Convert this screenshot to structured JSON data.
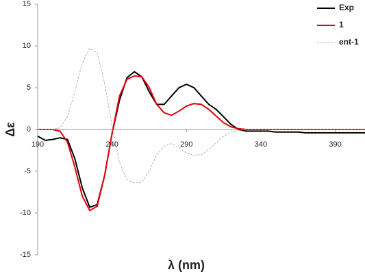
{
  "chart_data": {
    "type": "line",
    "x_label": "λ (nm)",
    "y_label": "Δε",
    "x": [
      190,
      195,
      200,
      205,
      210,
      215,
      220,
      225,
      230,
      235,
      240,
      245,
      250,
      255,
      260,
      265,
      270,
      275,
      280,
      285,
      290,
      295,
      300,
      305,
      310,
      315,
      320,
      325,
      330,
      335,
      340,
      345,
      350,
      355,
      360,
      365,
      370,
      375,
      380,
      385,
      390,
      395,
      400,
      405,
      410
    ],
    "series": [
      {
        "name": "Exp",
        "color": "#000000",
        "dash": "solid",
        "values": [
          -0.8,
          -1.3,
          -1.2,
          -1.0,
          -1.2,
          -3.5,
          -7.0,
          -9.3,
          -9.0,
          -5.5,
          -0.5,
          3.5,
          6.2,
          6.9,
          6.3,
          4.5,
          3.0,
          3.0,
          4.0,
          5.0,
          5.4,
          5.0,
          4.0,
          3.0,
          2.4,
          1.5,
          0.6,
          0.0,
          -0.2,
          -0.2,
          -0.2,
          -0.2,
          -0.3,
          -0.3,
          -0.3,
          -0.3,
          -0.4,
          -0.4,
          -0.4,
          -0.4,
          -0.4,
          -0.4,
          -0.4,
          -0.4,
          -0.4
        ]
      },
      {
        "name": "1",
        "color": "#e8000b",
        "dash": "solid",
        "values": [
          0,
          0,
          0,
          -0.2,
          -1.5,
          -4.5,
          -8.0,
          -9.7,
          -9.2,
          -5.5,
          -0.5,
          4.0,
          6.0,
          6.4,
          6.3,
          5.0,
          3.0,
          2.0,
          1.7,
          2.2,
          2.8,
          3.1,
          3.0,
          2.4,
          1.6,
          0.8,
          0.3,
          0.1,
          0,
          0,
          0,
          0,
          0,
          0,
          0,
          0,
          0,
          0,
          0,
          0,
          0,
          0,
          0,
          0,
          0
        ]
      },
      {
        "name": "ent-1",
        "color": "#b0b0b0",
        "dash": "dashed",
        "values": [
          0,
          0,
          0,
          0.2,
          1.5,
          4.5,
          8.0,
          9.7,
          9.2,
          5.5,
          0.5,
          -4.0,
          -6.0,
          -6.4,
          -6.3,
          -5.0,
          -3.0,
          -2.0,
          -1.7,
          -2.2,
          -2.8,
          -3.1,
          -3.0,
          -2.4,
          -1.6,
          -0.8,
          -0.3,
          -0.1,
          0,
          0,
          0,
          0,
          0,
          0,
          0,
          0,
          0,
          0,
          0,
          0,
          0,
          0,
          0,
          0,
          0
        ]
      }
    ],
    "xlim": [
      190,
      410
    ],
    "ylim": [
      -15,
      15
    ],
    "xticks": [
      190,
      240,
      290,
      340,
      390
    ],
    "yticks": [
      -15,
      -10,
      -5,
      0,
      5,
      10,
      15
    ],
    "legend": "top-right",
    "grid": false
  }
}
